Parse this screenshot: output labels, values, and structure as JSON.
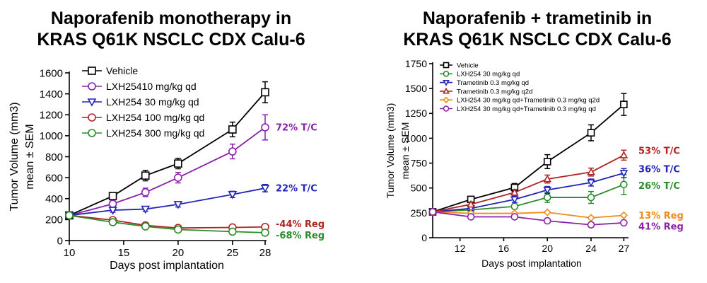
{
  "chart_data": [
    {
      "type": "line",
      "title": [
        "Naporafenib monotherapy in",
        "KRAS Q61K NSCLC CDX Calu-6"
      ],
      "xlabel": "Days post implantation",
      "ylabel": [
        "Tumor Volume (mm3)",
        "mean ± SEM"
      ],
      "xlim": [
        10,
        28
      ],
      "ylim": [
        0,
        1600
      ],
      "xticks": [
        "10",
        "15",
        "20",
        "25",
        "28"
      ],
      "xtick_values": [
        10,
        15,
        20,
        25,
        28
      ],
      "yticks": [
        "0",
        "200",
        "400",
        "600",
        "800",
        "1000",
        "1200",
        "1400",
        "1600"
      ],
      "ytick_values": [
        0,
        200,
        400,
        600,
        800,
        1000,
        1200,
        1400,
        1600
      ],
      "x": [
        10,
        14,
        17,
        20,
        25,
        28
      ],
      "series": [
        {
          "name": "Vehicle",
          "color": "#000000",
          "marker": "square",
          "values": [
            240,
            425,
            620,
            735,
            1060,
            1415
          ],
          "errors": [
            20,
            30,
            50,
            50,
            70,
            100
          ]
        },
        {
          "name": "LXH25410 mg/kg qd",
          "color": "#8a22a8",
          "marker": "circle",
          "values": [
            240,
            350,
            460,
            600,
            850,
            1080
          ],
          "errors": [
            20,
            30,
            40,
            50,
            70,
            120
          ]
        },
        {
          "name": "LXH254 30 mg/kg qd",
          "color": "#2424b8",
          "marker": "triangle-down",
          "values": [
            240,
            290,
            300,
            345,
            440,
            500
          ],
          "errors": [
            15,
            20,
            20,
            25,
            30,
            35
          ]
        },
        {
          "name": "LXH254 100 mg/kg qd",
          "color": "#b02424",
          "marker": "circle",
          "values": [
            240,
            195,
            145,
            120,
            125,
            130
          ],
          "errors": [
            15,
            15,
            12,
            10,
            10,
            10
          ]
        },
        {
          "name": "LXH254 300 mg/kg qd",
          "color": "#2a8c2a",
          "marker": "circle",
          "values": [
            240,
            175,
            135,
            105,
            85,
            75
          ],
          "errors": [
            15,
            15,
            10,
            10,
            10,
            8
          ]
        }
      ],
      "annotations": [
        {
          "text": "72% T/C",
          "y": 1080,
          "color": "#8a22a8"
        },
        {
          "text": "22% T/C",
          "y": 500,
          "color": "#2424b8"
        },
        {
          "text": "-44% Reg",
          "y": 160,
          "color": "#b02424"
        },
        {
          "text": "-68% Reg",
          "y": 50,
          "color": "#2a8c2a"
        }
      ]
    },
    {
      "type": "line",
      "title": [
        "Naporafenib + trametinib in",
        "KRAS Q61K NSCLC CDX Calu-6"
      ],
      "xlabel": "Days post implantation",
      "ylabel": [
        "Tumor Volume (mm3)",
        "mean ± SEM"
      ],
      "xlim": [
        9.5,
        27.3
      ],
      "ylim": [
        0,
        1750
      ],
      "xticks": [
        "12",
        "16",
        "20",
        "24",
        "27"
      ],
      "xtick_values": [
        12,
        16,
        20,
        24,
        27
      ],
      "yticks": [
        "0",
        "250",
        "500",
        "750",
        "1000",
        "1250",
        "1500",
        "1750"
      ],
      "ytick_values": [
        0,
        250,
        500,
        750,
        1000,
        1250,
        1500,
        1750
      ],
      "x": [
        9.5,
        13,
        17,
        20,
        24,
        27
      ],
      "series": [
        {
          "name": "Vehicle",
          "color": "#000000",
          "marker": "square",
          "values": [
            260,
            385,
            505,
            765,
            1055,
            1340
          ],
          "errors": [
            15,
            30,
            40,
            70,
            80,
            110
          ]
        },
        {
          "name": "LXH254 30 mg/kg qd",
          "color": "#2a8c2a",
          "marker": "circle",
          "values": [
            260,
            280,
            315,
            405,
            405,
            535
          ],
          "errors": [
            15,
            20,
            25,
            50,
            60,
            100
          ]
        },
        {
          "name": "Trametinib 0.3 mg/kg qd",
          "color": "#2424b8",
          "marker": "triangle-down",
          "values": [
            260,
            295,
            385,
            480,
            555,
            650
          ],
          "errors": [
            15,
            20,
            30,
            35,
            35,
            45
          ]
        },
        {
          "name": "Trametinib 0.3 mg/kg q2d",
          "color": "#b02424",
          "marker": "triangle-up",
          "values": [
            260,
            335,
            455,
            590,
            660,
            830
          ],
          "errors": [
            15,
            25,
            30,
            40,
            40,
            50
          ]
        },
        {
          "name": "LXH254 30 mg/kg qd+Trametinib 0.3 mg/kg q2d",
          "color": "#f08a1c",
          "marker": "diamond",
          "values": [
            260,
            245,
            245,
            255,
            200,
            225
          ],
          "errors": [
            10,
            10,
            10,
            10,
            10,
            10
          ]
        },
        {
          "name": "LXH254 30 mg/kg qd+Trametinib 0.3 mg/kg qd",
          "color": "#8a22a8",
          "marker": "circle",
          "values": [
            260,
            210,
            210,
            170,
            130,
            150
          ],
          "errors": [
            10,
            10,
            10,
            10,
            10,
            10
          ]
        }
      ],
      "annotations": [
        {
          "text": "53% T/C",
          "y": 875,
          "color": "#b02424"
        },
        {
          "text": "36% T/C",
          "y": 690,
          "color": "#2424b8"
        },
        {
          "text": "26% T/C",
          "y": 525,
          "color": "#2a8c2a"
        },
        {
          "text": "13% Reg",
          "y": 225,
          "color": "#f08a1c"
        },
        {
          "text": "41% Reg",
          "y": 115,
          "color": "#8a22a8"
        }
      ]
    }
  ]
}
